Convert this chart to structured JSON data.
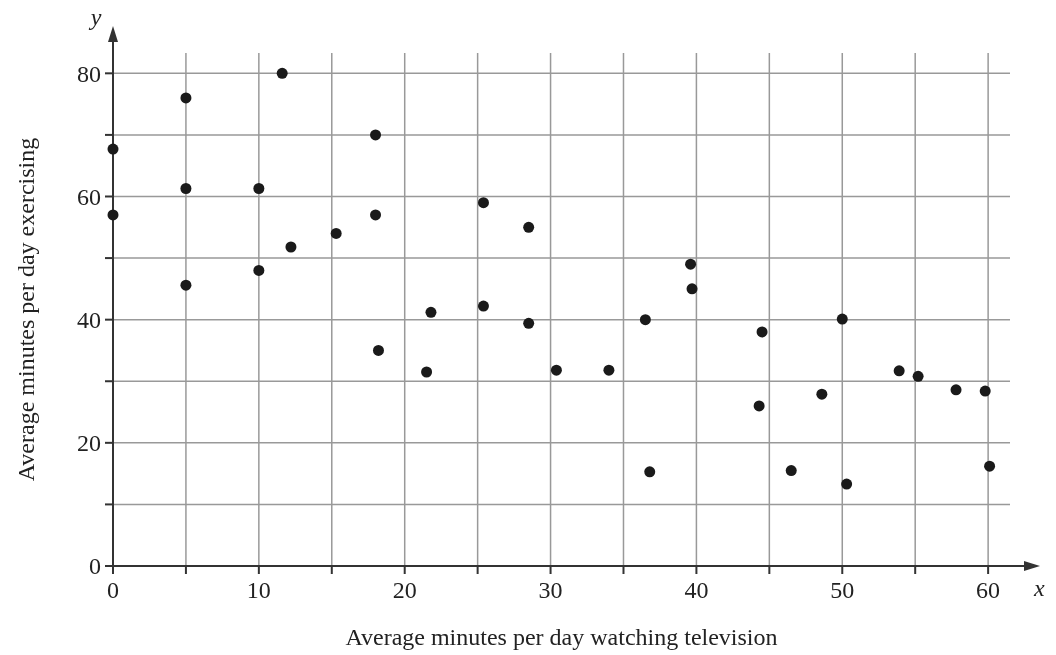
{
  "chart_data": {
    "type": "scatter",
    "xlabel": "Average minutes per day watching television",
    "ylabel": "Average minutes per day exercising",
    "x": [
      0,
      0,
      5,
      5,
      5,
      10,
      10,
      11.6,
      12.2,
      15.3,
      18,
      18,
      18.2,
      21.5,
      21.8,
      25.4,
      25.4,
      28.5,
      28.5,
      30.4,
      34,
      36.5,
      36.8,
      39.6,
      39.7,
      44.5,
      44.3,
      46.5,
      48.6,
      50,
      50.3,
      53.9,
      55.2,
      57.8,
      59.8,
      60.1
    ],
    "values": [
      67.7,
      57,
      76,
      61.3,
      45.6,
      61.3,
      48,
      80,
      51.8,
      54,
      70,
      57,
      35,
      31.5,
      41.2,
      59,
      42.2,
      55,
      39.4,
      31.8,
      31.8,
      40,
      15.3,
      49,
      45,
      38,
      26,
      15.5,
      27.9,
      40.1,
      13.3,
      31.7,
      30.8,
      28.6,
      28.4,
      16.2
    ],
    "color": "#1a1a1a",
    "marker": "circle",
    "grid": true,
    "xlim": [
      0,
      61.5
    ],
    "ylim": [
      0,
      83.3
    ],
    "xticks": [
      0,
      {
        "value": 5,
        "label": null
      },
      10,
      {
        "value": 15,
        "label": null
      },
      20,
      {
        "value": 25,
        "label": null
      },
      30,
      {
        "value": 35,
        "label": null
      },
      40,
      {
        "value": 45,
        "label": null
      },
      50,
      {
        "value": 55,
        "label": null
      },
      60
    ],
    "yticks": [
      0,
      {
        "value": 10,
        "label": null
      },
      20,
      {
        "value": 30,
        "label": null
      },
      40,
      {
        "value": 50,
        "label": null
      },
      60,
      {
        "value": 70,
        "label": null
      },
      80
    ],
    "annotations": [
      "x",
      "y"
    ]
  }
}
